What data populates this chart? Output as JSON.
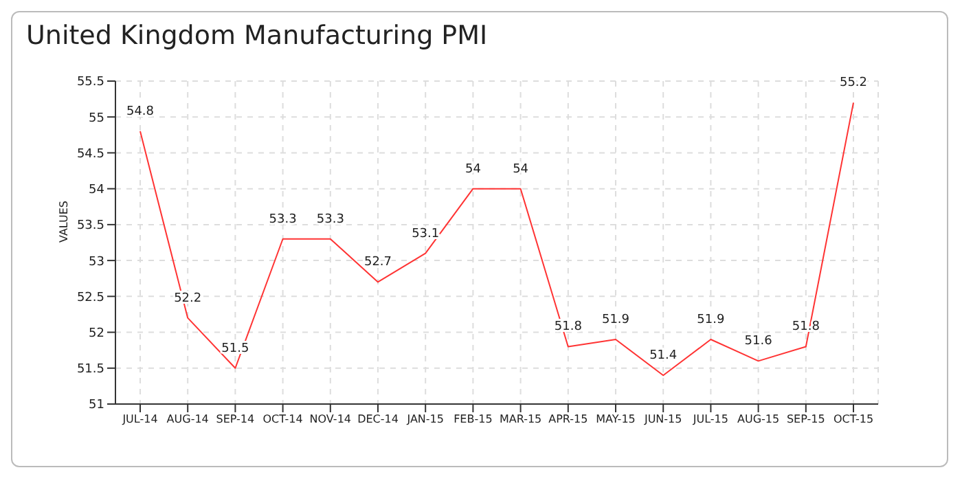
{
  "chart_data": {
    "type": "line",
    "title": "United Kingdom Manufacturing PMI",
    "ylabel": "VALUES",
    "categories": [
      "JUL-14",
      "AUG-14",
      "SEP-14",
      "OCT-14",
      "NOV-14",
      "DEC-14",
      "JAN-15",
      "FEB-15",
      "MAR-15",
      "APR-15",
      "MAY-15",
      "JUN-15",
      "JUL-15",
      "AUG-15",
      "SEP-15",
      "OCT-15"
    ],
    "series": [
      {
        "color": "#ff3333",
        "values": [
          54.8,
          52.2,
          51.5,
          53.3,
          53.3,
          52.7,
          53.1,
          54,
          54,
          51.8,
          51.9,
          51.4,
          51.9,
          51.6,
          51.8,
          55.2
        ]
      }
    ],
    "ylim": [
      51,
      55.5
    ],
    "yticks": [
      51,
      51.5,
      52,
      52.5,
      53,
      53.5,
      54,
      54.5,
      55,
      55.5
    ],
    "grid": true,
    "data_labels": true,
    "marker": "none",
    "line_style": "solid"
  }
}
